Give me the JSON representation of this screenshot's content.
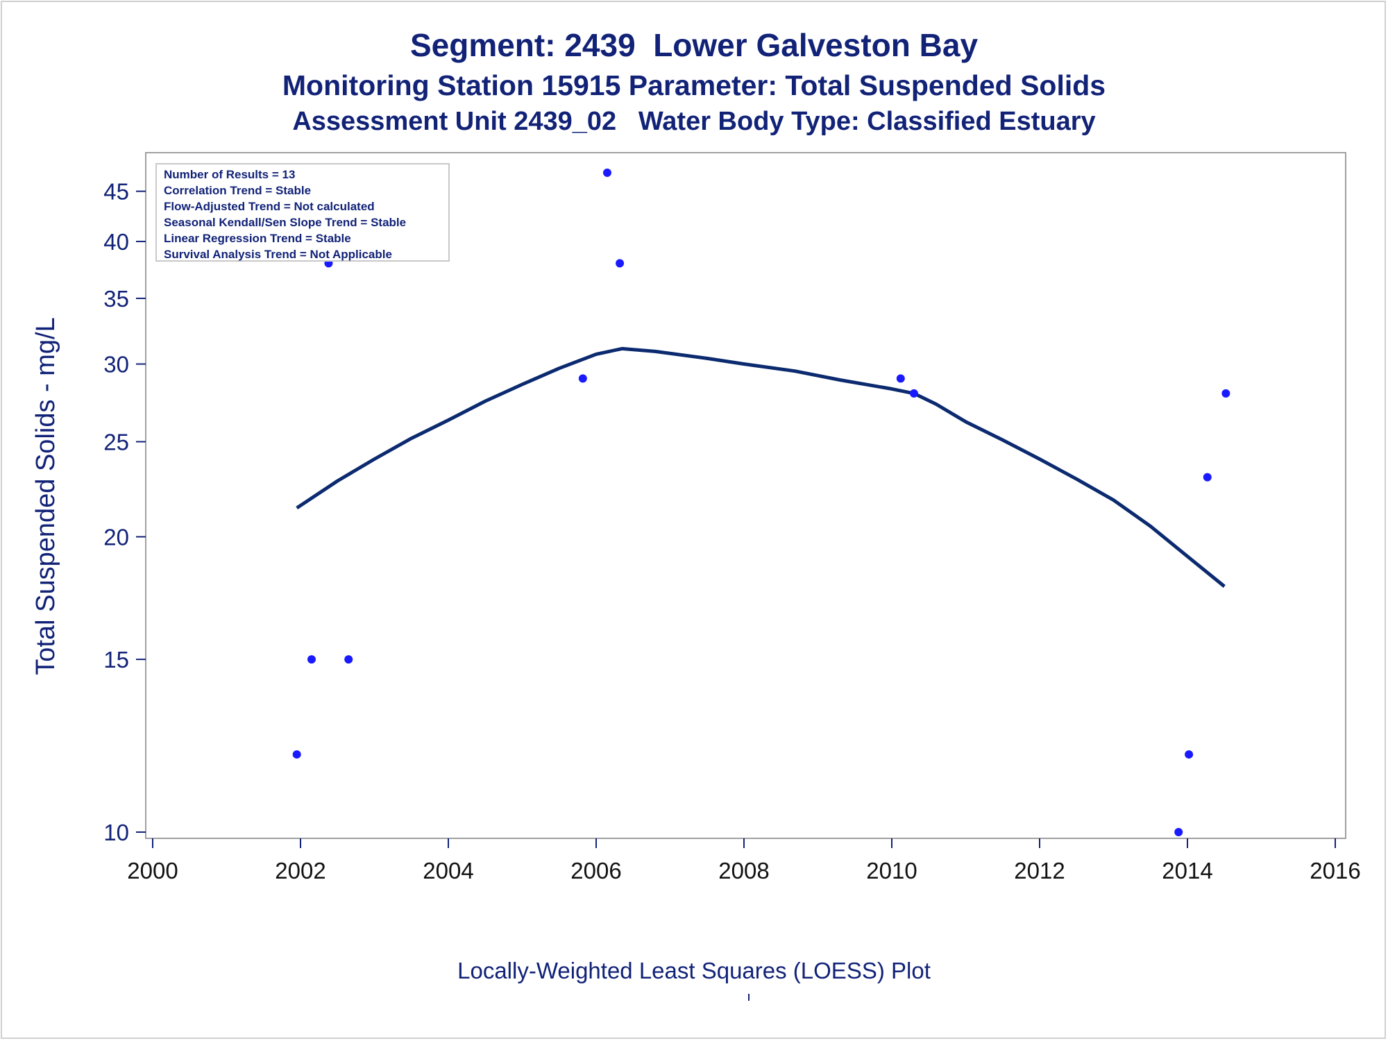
{
  "titles": {
    "line1": "Segment: 2439  Lower Galveston Bay",
    "line2": "Monitoring Station 15915 Parameter: Total Suspended Solids",
    "line3": "Assessment Unit 2439_02   Water Body Type: Classified Estuary"
  },
  "footnote": "Locally-Weighted Least Squares (LOESS) Plot",
  "colors": {
    "text": "#112277",
    "points": "#1a1aff",
    "line": "#0b2a6f",
    "axis": "#a0a0a0"
  },
  "chart_data": {
    "type": "scatter",
    "ylabel": "Total Suspended Solids - mg/L",
    "xlabel": "",
    "yscale": "log",
    "xlim": [
      2000,
      2016
    ],
    "ylim": [
      9.8,
      48
    ],
    "x_ticks": [
      2000,
      2002,
      2004,
      2006,
      2008,
      2010,
      2012,
      2014,
      2016
    ],
    "y_ticks": [
      10,
      15,
      20,
      25,
      30,
      35,
      40,
      45
    ],
    "grid": false,
    "legend_box": {
      "placement": "top-left",
      "lines": [
        "Number of Results = 13",
        "Correlation Trend = Stable",
        "Flow-Adjusted Trend = Not calculated",
        "Seasonal Kendall/Sen Slope Trend = Stable",
        "Linear Regression Trend = Stable",
        "Survival Analysis Trend = Not Applicable"
      ]
    },
    "series": [
      {
        "type": "scatter",
        "x": [
          2001.95,
          2002.15,
          2002.38,
          2002.65,
          2005.82,
          2006.15,
          2006.32,
          2010.12,
          2010.3,
          2013.88,
          2014.02,
          2014.27,
          2014.52
        ],
        "y": [
          12,
          15,
          38,
          15,
          29,
          47,
          38,
          29,
          28,
          10,
          12,
          23,
          28
        ]
      },
      {
        "type": "line",
        "x": [
          2001.95,
          2002.5,
          2003.0,
          2003.5,
          2004.0,
          2004.5,
          2005.0,
          2005.5,
          2006.0,
          2006.35,
          2006.8,
          2007.5,
          2008.0,
          2008.7,
          2009.3,
          2010.0,
          2010.3,
          2010.6,
          2011.0,
          2011.5,
          2012.0,
          2012.5,
          2013.0,
          2013.5,
          2014.0,
          2014.5
        ],
        "y": [
          21.4,
          22.8,
          24.0,
          25.2,
          26.3,
          27.5,
          28.6,
          29.7,
          30.7,
          31.1,
          30.9,
          30.4,
          30.0,
          29.5,
          28.9,
          28.3,
          28.0,
          27.3,
          26.2,
          25.1,
          24.0,
          22.9,
          21.8,
          20.5,
          19.1,
          17.8
        ]
      }
    ]
  }
}
